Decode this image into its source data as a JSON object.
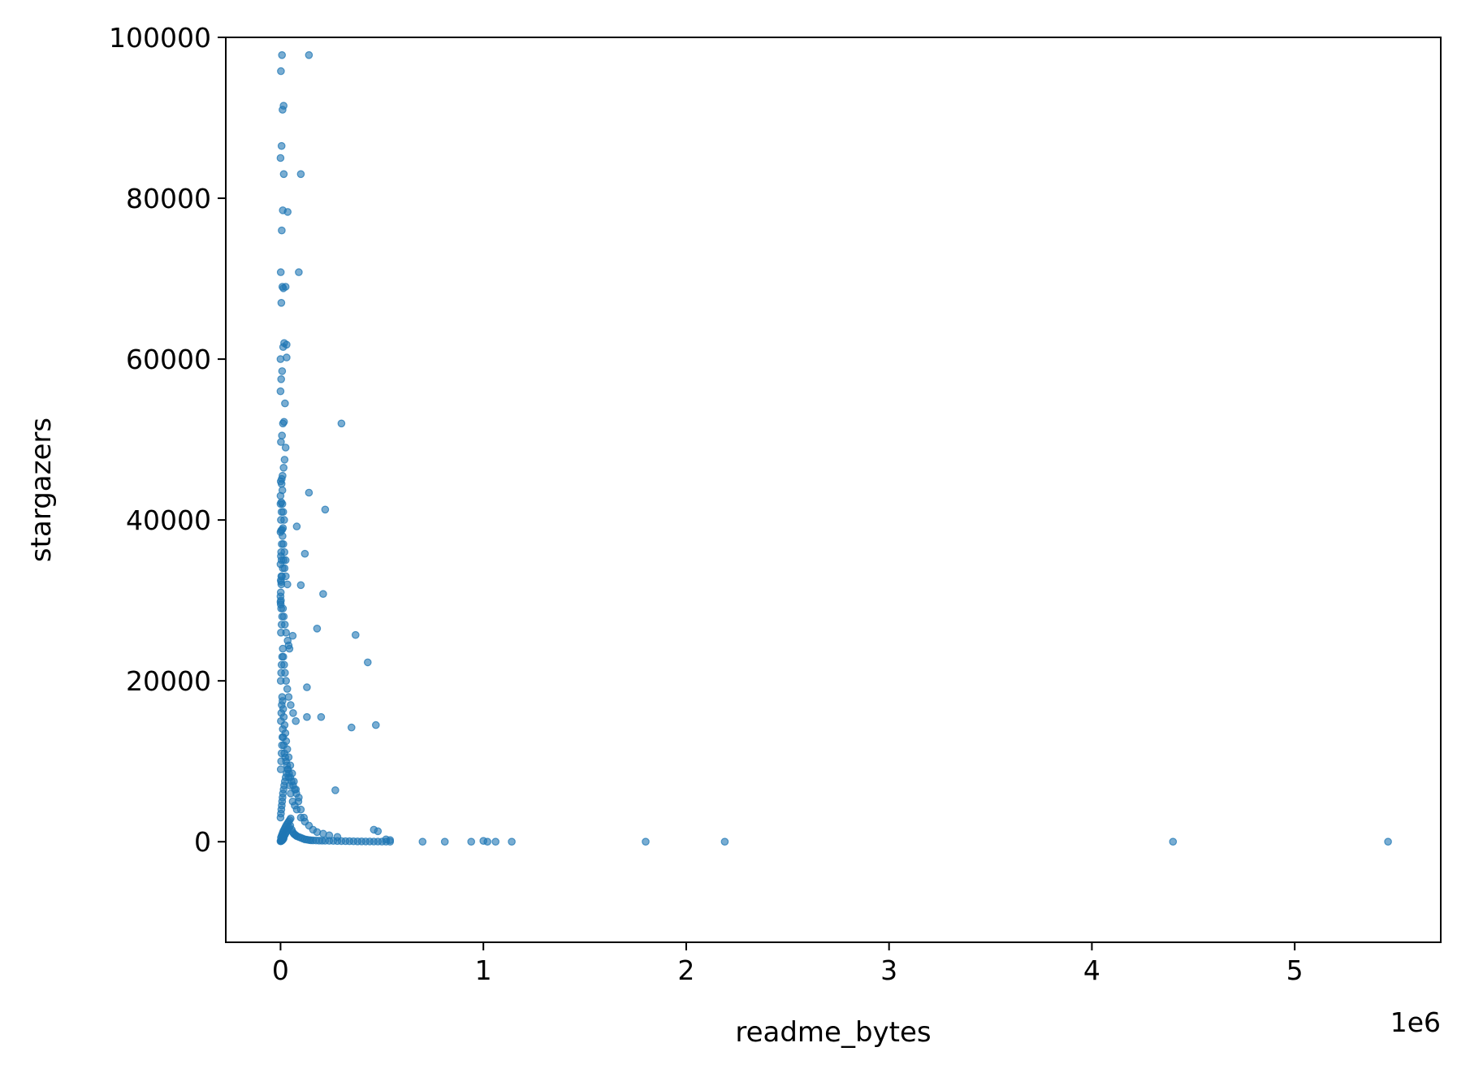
{
  "chart_data": {
    "type": "scatter",
    "title": "",
    "xlabel": "readme_bytes",
    "ylabel": "stargazers",
    "x_offset_label": "1e6",
    "xlim": [
      -270000,
      5720000
    ],
    "ylim": [
      -12500,
      100000
    ],
    "x_ticks": [
      {
        "value": 0,
        "label": "0"
      },
      {
        "value": 1000000,
        "label": "1"
      },
      {
        "value": 2000000,
        "label": "2"
      },
      {
        "value": 3000000,
        "label": "3"
      },
      {
        "value": 4000000,
        "label": "4"
      },
      {
        "value": 5000000,
        "label": "5"
      }
    ],
    "y_ticks": [
      {
        "value": 0,
        "label": "0"
      },
      {
        "value": 20000,
        "label": "20000"
      },
      {
        "value": 40000,
        "label": "40000"
      },
      {
        "value": 60000,
        "label": "60000"
      },
      {
        "value": 80000,
        "label": "80000"
      },
      {
        "value": 100000,
        "label": "100000"
      }
    ],
    "grid": false,
    "marker_color": "#1f77b4",
    "marker_alpha": 0.6,
    "series": [
      {
        "x": [
          0,
          3000,
          6000,
          9000,
          12000,
          15000,
          2000,
          5000,
          8000,
          11000,
          14000,
          18000,
          22000,
          26000,
          30000,
          35000,
          40000,
          45000,
          50000,
          1000,
          4000,
          7000,
          10000,
          13000,
          16000,
          20000,
          24000,
          28000,
          33000,
          38000,
          43000,
          48000,
          55000,
          60000,
          65000,
          70000,
          75000,
          80000,
          90000,
          100000,
          110000,
          120000,
          130000,
          140000,
          150000,
          160000,
          175000,
          190000,
          205000,
          220000,
          240000,
          260000,
          280000,
          300000,
          320000,
          340000,
          360000,
          380000,
          400000,
          420000,
          440000,
          460000,
          480000,
          500000,
          520000,
          540000,
          0,
          2000,
          4000,
          6000,
          8000,
          10000,
          12000,
          15000,
          18000,
          21000,
          25000,
          30000,
          35000,
          40000,
          45000,
          50000,
          60000,
          70000,
          80000,
          100000,
          120000,
          140000,
          160000,
          180000,
          210000,
          240000,
          280000,
          1000,
          3000,
          5000,
          7000,
          9000,
          11000,
          13000,
          16000,
          19000,
          23000,
          27000,
          32000,
          37000,
          42000,
          48000,
          55000,
          62000,
          70000,
          78000,
          88000,
          100000,
          115000,
          2000,
          4000,
          6000,
          8000,
          10000,
          13000,
          16000,
          20000,
          24000,
          28000,
          33000,
          40000,
          48000,
          57000,
          66000,
          76000,
          90000,
          1000,
          3000,
          5000,
          8000,
          11000,
          14000,
          18000,
          22000,
          27000,
          33000,
          40000,
          50000,
          62000,
          75000,
          2000,
          5000,
          8000,
          12000,
          16000,
          21000,
          27000,
          35000,
          44000,
          1000,
          4000,
          7000,
          11000,
          15000,
          20000,
          26000,
          34000,
          3000,
          6000,
          10000,
          14000,
          19000,
          25000,
          2000,
          5000,
          9000,
          13000,
          18000
        ],
        "y": [
          50,
          80,
          120,
          200,
          300,
          400,
          500,
          700,
          900,
          1100,
          1300,
          1500,
          1700,
          1900,
          2100,
          2300,
          2500,
          2700,
          2900,
          100,
          150,
          250,
          350,
          450,
          600,
          800,
          1000,
          1200,
          1400,
          1600,
          1800,
          2000,
          1500,
          1200,
          1000,
          900,
          800,
          700,
          600,
          500,
          400,
          300,
          250,
          200,
          180,
          160,
          150,
          140,
          130,
          120,
          110,
          100,
          90,
          80,
          70,
          60,
          50,
          45,
          40,
          35,
          30,
          25,
          20,
          15,
          10,
          5,
          3000,
          3500,
          4000,
          4500,
          5000,
          5500,
          6000,
          6500,
          7000,
          7500,
          8000,
          8500,
          9000,
          8000,
          7000,
          6000,
          5000,
          4500,
          4000,
          3000,
          2500,
          2000,
          1500,
          1200,
          1000,
          800,
          600,
          9000,
          10000,
          11000,
          12000,
          13000,
          14000,
          13000,
          12000,
          11000,
          10500,
          10000,
          9500,
          9000,
          8500,
          8000,
          7500,
          7000,
          6500,
          6000,
          5000,
          4000,
          3000,
          15000,
          16000,
          17000,
          18000,
          17500,
          16500,
          15500,
          14500,
          13500,
          12500,
          11500,
          10500,
          9500,
          8500,
          7500,
          6500,
          5500,
          20000,
          21000,
          22000,
          23000,
          24000,
          23000,
          22000,
          21000,
          20000,
          19000,
          18000,
          17000,
          16000,
          15000,
          26000,
          27000,
          28000,
          29000,
          28000,
          27000,
          26000,
          25000,
          24000,
          31000,
          32000,
          33000,
          34000,
          35000,
          34000,
          33000,
          32000,
          36000,
          37000,
          38000,
          37000,
          36000,
          35000,
          40000,
          41000,
          42000,
          41000,
          40000
        ]
      },
      {
        "x": [
          0,
          5000,
          10000,
          15000,
          20000,
          25000,
          2000,
          7000,
          12000,
          17000,
          22000,
          0,
          3000,
          8000,
          13000,
          18000,
          0,
          4000,
          9000,
          14000,
          1000,
          6000,
          11000,
          16000,
          0,
          5000,
          10000,
          15000,
          2000,
          7000,
          12000,
          0,
          4000,
          9000,
          1000,
          6000,
          0,
          3000,
          8000,
          2000,
          5000,
          0,
          4000,
          1000,
          3000,
          0,
          2000,
          0,
          1000,
          3000,
          140000,
          100000,
          35000,
          90000,
          25000,
          30000,
          30000,
          300000,
          220000,
          140000,
          210000,
          370000,
          180000,
          430000,
          470000,
          350000,
          120000,
          80000,
          100000,
          60000,
          40000,
          130000,
          130000,
          200000,
          270000,
          700000,
          810000,
          940000,
          1000000,
          1020000,
          1060000,
          1140000,
          1800000,
          2190000,
          4400000,
          5460000,
          460000,
          480000,
          520000,
          540000
        ],
        "y": [
          43000,
          44500,
          45500,
          46500,
          47500,
          49000,
          49700,
          50500,
          52000,
          52200,
          54500,
          56000,
          57500,
          58500,
          61500,
          62000,
          60000,
          67000,
          69000,
          68800,
          70800,
          76000,
          78500,
          83000,
          85000,
          86500,
          91000,
          91500,
          95800,
          97800,
          39000,
          42000,
          42200,
          43700,
          44800,
          45100,
          38500,
          38700,
          38800,
          35500,
          35000,
          34500,
          33000,
          32500,
          32300,
          30500,
          30000,
          29800,
          29500,
          29000,
          97800,
          83000,
          78300,
          70800,
          69000,
          60200,
          61800,
          52000,
          41300,
          43400,
          30800,
          25700,
          26500,
          22300,
          14500,
          14200,
          35800,
          39200,
          31900,
          25600,
          24400,
          19200,
          15500,
          15500,
          6400,
          0,
          0,
          0,
          100,
          0,
          0,
          0,
          0,
          0,
          0,
          0,
          1500,
          1300,
          300,
          200
        ]
      }
    ]
  }
}
